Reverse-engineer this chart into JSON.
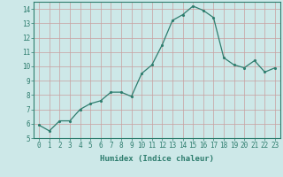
{
  "x": [
    0,
    1,
    2,
    3,
    4,
    5,
    6,
    7,
    8,
    9,
    10,
    11,
    12,
    13,
    14,
    15,
    16,
    17,
    18,
    19,
    20,
    21,
    22,
    23
  ],
  "y": [
    5.9,
    5.5,
    6.2,
    6.2,
    7.0,
    7.4,
    7.6,
    8.2,
    8.2,
    7.9,
    9.5,
    10.1,
    11.5,
    13.2,
    13.6,
    14.2,
    13.9,
    13.4,
    10.6,
    10.1,
    9.9,
    10.4,
    9.6,
    9.9
  ],
  "xlabel": "Humidex (Indice chaleur)",
  "ylim": [
    5,
    14.5
  ],
  "xlim": [
    -0.5,
    23.5
  ],
  "yticks": [
    5,
    6,
    7,
    8,
    9,
    10,
    11,
    12,
    13,
    14
  ],
  "xticks": [
    0,
    1,
    2,
    3,
    4,
    5,
    6,
    7,
    8,
    9,
    10,
    11,
    12,
    13,
    14,
    15,
    16,
    17,
    18,
    19,
    20,
    21,
    22,
    23
  ],
  "line_color": "#2e7d6e",
  "marker_color": "#2e7d6e",
  "bg_color": "#cde8e8",
  "grid_color": "#c8a0a0",
  "axis_color": "#2e7d6e",
  "label_fontsize": 6.5,
  "tick_fontsize": 5.5
}
